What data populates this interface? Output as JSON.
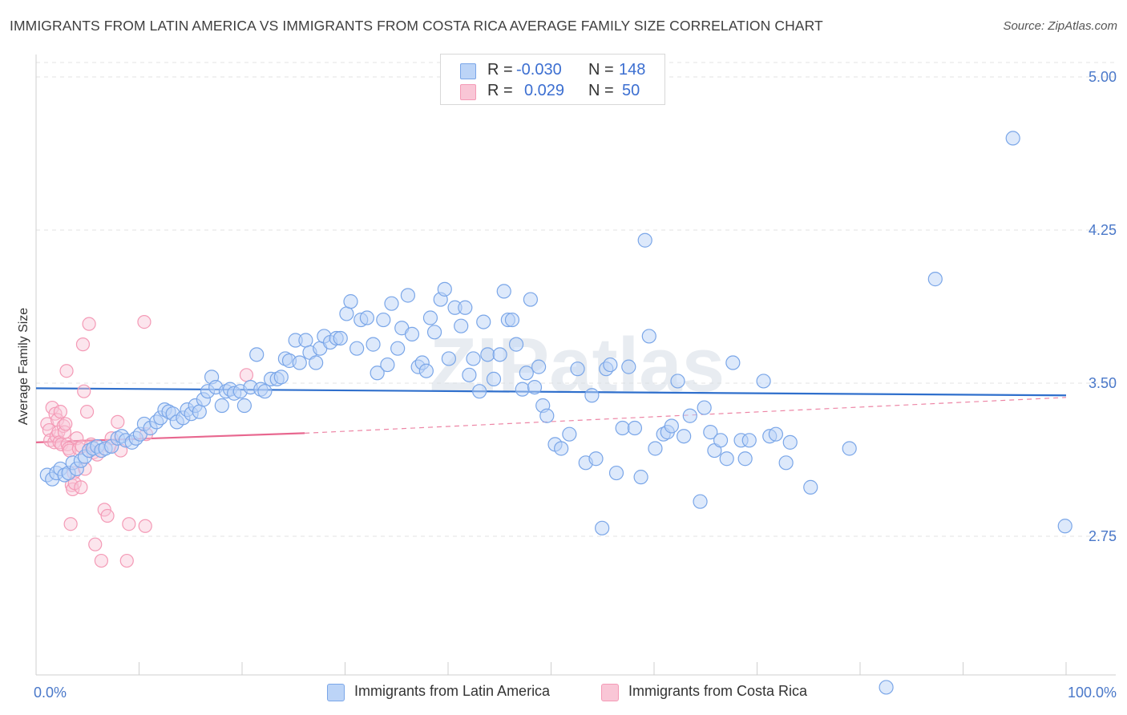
{
  "title": "IMMIGRANTS FROM LATIN AMERICA VS IMMIGRANTS FROM COSTA RICA AVERAGE FAMILY SIZE CORRELATION CHART",
  "source": "Source: ZipAtlas.com",
  "watermark": "ZIPatlas",
  "legend": {
    "r_label": "R =",
    "n_label": "N =",
    "rows": [
      {
        "r": "-0.030",
        "n": "148",
        "color": "#a9c8f5"
      },
      {
        "r": "0.029",
        "n": "50",
        "color": "#f7b3c8"
      }
    ]
  },
  "chart_data": {
    "type": "scatter",
    "title": "IMMIGRANTS FROM LATIN AMERICA VS IMMIGRANTS FROM COSTA RICA AVERAGE FAMILY SIZE CORRELATION CHART",
    "xlabel": "",
    "ylabel": "Average Family Size",
    "x_ticks": [
      "0.0%",
      "100.0%"
    ],
    "y_ticks": [
      "2.75",
      "3.50",
      "4.25",
      "5.00"
    ],
    "y_tick_values": [
      2.75,
      3.5,
      4.25,
      5.0
    ],
    "xlim": [
      0,
      100
    ],
    "ylim": [
      2.0,
      5.1
    ],
    "grid": true,
    "legend_position": "bottom",
    "series": [
      {
        "name": "Immigrants from Latin America",
        "color": "#7aa6e8",
        "line_color": "#2f6fcc",
        "trend": {
          "x": [
            0,
            100
          ],
          "y": [
            3.475,
            3.44
          ],
          "style": "solid"
        },
        "points": [
          [
            0.3,
            3.05
          ],
          [
            0.8,
            3.03
          ],
          [
            1.2,
            3.06
          ],
          [
            1.6,
            3.08
          ],
          [
            2.0,
            3.05
          ],
          [
            2.4,
            3.06
          ],
          [
            2.8,
            3.11
          ],
          [
            3.2,
            3.08
          ],
          [
            3.6,
            3.12
          ],
          [
            4.0,
            3.14
          ],
          [
            4.4,
            3.17
          ],
          [
            4.8,
            3.18
          ],
          [
            5.2,
            3.19
          ],
          [
            5.6,
            3.17
          ],
          [
            6.0,
            3.18
          ],
          [
            6.6,
            3.19
          ],
          [
            7.2,
            3.23
          ],
          [
            7.6,
            3.24
          ],
          [
            8.0,
            3.22
          ],
          [
            8.6,
            3.21
          ],
          [
            9.0,
            3.23
          ],
          [
            9.4,
            3.25
          ],
          [
            9.8,
            3.3
          ],
          [
            10.4,
            3.28
          ],
          [
            11.0,
            3.31
          ],
          [
            11.4,
            3.33
          ],
          [
            11.8,
            3.37
          ],
          [
            12.2,
            3.36
          ],
          [
            12.6,
            3.35
          ],
          [
            13.0,
            3.31
          ],
          [
            13.6,
            3.33
          ],
          [
            14.0,
            3.37
          ],
          [
            14.4,
            3.35
          ],
          [
            14.8,
            3.39
          ],
          [
            15.2,
            3.36
          ],
          [
            15.6,
            3.42
          ],
          [
            16.0,
            3.46
          ],
          [
            16.4,
            3.53
          ],
          [
            16.8,
            3.48
          ],
          [
            17.4,
            3.39
          ],
          [
            17.8,
            3.46
          ],
          [
            18.2,
            3.47
          ],
          [
            18.6,
            3.45
          ],
          [
            19.2,
            3.46
          ],
          [
            19.6,
            3.39
          ],
          [
            20.2,
            3.48
          ],
          [
            20.8,
            3.64
          ],
          [
            21.2,
            3.47
          ],
          [
            21.6,
            3.46
          ],
          [
            22.2,
            3.52
          ],
          [
            22.8,
            3.52
          ],
          [
            23.2,
            3.53
          ],
          [
            23.6,
            3.62
          ],
          [
            24.0,
            3.61
          ],
          [
            24.6,
            3.71
          ],
          [
            25.0,
            3.6
          ],
          [
            25.6,
            3.71
          ],
          [
            26.0,
            3.65
          ],
          [
            26.6,
            3.6
          ],
          [
            27.0,
            3.67
          ],
          [
            27.4,
            3.73
          ],
          [
            28.0,
            3.7
          ],
          [
            28.6,
            3.72
          ],
          [
            29.0,
            3.72
          ],
          [
            29.6,
            3.84
          ],
          [
            30.0,
            3.9
          ],
          [
            30.6,
            3.67
          ],
          [
            31.0,
            3.81
          ],
          [
            31.6,
            3.82
          ],
          [
            32.2,
            3.69
          ],
          [
            32.6,
            3.55
          ],
          [
            33.2,
            3.81
          ],
          [
            33.6,
            3.59
          ],
          [
            34.0,
            3.89
          ],
          [
            34.6,
            3.67
          ],
          [
            35.0,
            3.77
          ],
          [
            35.6,
            3.93
          ],
          [
            36.0,
            3.74
          ],
          [
            36.6,
            3.58
          ],
          [
            37.0,
            3.6
          ],
          [
            37.4,
            3.56
          ],
          [
            37.8,
            3.82
          ],
          [
            38.2,
            3.75
          ],
          [
            38.8,
            3.91
          ],
          [
            39.2,
            3.96
          ],
          [
            39.6,
            3.62
          ],
          [
            40.2,
            3.87
          ],
          [
            40.8,
            3.78
          ],
          [
            41.2,
            3.87
          ],
          [
            41.6,
            3.54
          ],
          [
            42.0,
            3.62
          ],
          [
            42.6,
            3.46
          ],
          [
            43.0,
            3.8
          ],
          [
            43.4,
            3.64
          ],
          [
            44.0,
            3.52
          ],
          [
            44.6,
            3.64
          ],
          [
            45.0,
            3.95
          ],
          [
            45.4,
            3.81
          ],
          [
            45.8,
            3.81
          ],
          [
            46.2,
            3.69
          ],
          [
            46.8,
            3.47
          ],
          [
            47.2,
            3.55
          ],
          [
            47.6,
            3.91
          ],
          [
            48.0,
            3.48
          ],
          [
            48.4,
            3.58
          ],
          [
            48.8,
            3.39
          ],
          [
            49.2,
            3.34
          ],
          [
            50.0,
            3.2
          ],
          [
            50.6,
            3.18
          ],
          [
            51.4,
            3.25
          ],
          [
            52.2,
            3.57
          ],
          [
            53.0,
            3.11
          ],
          [
            53.6,
            3.44
          ],
          [
            54.0,
            3.13
          ],
          [
            54.6,
            2.79
          ],
          [
            55.0,
            3.57
          ],
          [
            55.4,
            3.59
          ],
          [
            56.0,
            3.06
          ],
          [
            56.6,
            3.28
          ],
          [
            57.2,
            3.58
          ],
          [
            57.8,
            3.28
          ],
          [
            58.4,
            3.04
          ],
          [
            58.8,
            4.2
          ],
          [
            59.2,
            3.73
          ],
          [
            59.8,
            3.18
          ],
          [
            60.6,
            3.25
          ],
          [
            61.0,
            3.26
          ],
          [
            61.4,
            3.29
          ],
          [
            62.0,
            3.51
          ],
          [
            62.6,
            3.24
          ],
          [
            63.2,
            3.34
          ],
          [
            64.2,
            2.92
          ],
          [
            64.6,
            3.38
          ],
          [
            65.2,
            3.26
          ],
          [
            65.6,
            3.17
          ],
          [
            66.2,
            3.22
          ],
          [
            66.8,
            3.13
          ],
          [
            67.4,
            3.6
          ],
          [
            68.2,
            3.22
          ],
          [
            68.6,
            3.13
          ],
          [
            69.0,
            3.22
          ],
          [
            70.4,
            3.51
          ],
          [
            71.0,
            3.24
          ],
          [
            71.6,
            3.25
          ],
          [
            72.6,
            3.11
          ],
          [
            73.0,
            3.21
          ],
          [
            75.0,
            2.99
          ],
          [
            78.8,
            3.18
          ],
          [
            82.4,
            2.01
          ],
          [
            87.2,
            4.01
          ],
          [
            94.8,
            4.7
          ],
          [
            99.9,
            2.8
          ]
        ]
      },
      {
        "name": "Immigrants from Costa Rica",
        "color": "#f49ab6",
        "line_color": "#e8678f",
        "trend": {
          "x": [
            0,
            25.5,
            100
          ],
          "y": [
            3.21,
            3.255,
            3.43
          ],
          "style": "solid-then-dashed"
        },
        "points": [
          [
            0.3,
            3.3
          ],
          [
            0.5,
            3.27
          ],
          [
            0.6,
            3.22
          ],
          [
            0.8,
            3.38
          ],
          [
            1.0,
            3.21
          ],
          [
            1.1,
            3.35
          ],
          [
            1.2,
            3.24
          ],
          [
            1.3,
            3.32
          ],
          [
            1.4,
            3.26
          ],
          [
            1.5,
            3.21
          ],
          [
            1.6,
            3.36
          ],
          [
            1.7,
            3.2
          ],
          [
            1.9,
            3.29
          ],
          [
            2.0,
            3.26
          ],
          [
            2.1,
            3.3
          ],
          [
            2.2,
            3.56
          ],
          [
            2.3,
            3.2
          ],
          [
            2.4,
            3.18
          ],
          [
            2.5,
            3.17
          ],
          [
            2.6,
            2.81
          ],
          [
            2.7,
            3.0
          ],
          [
            2.8,
            2.98
          ],
          [
            2.9,
            3.06
          ],
          [
            3.0,
            3.01
          ],
          [
            3.2,
            3.23
          ],
          [
            3.4,
            3.18
          ],
          [
            3.6,
            2.99
          ],
          [
            3.7,
            3.19
          ],
          [
            3.8,
            3.69
          ],
          [
            3.9,
            3.46
          ],
          [
            4.0,
            3.08
          ],
          [
            4.2,
            3.36
          ],
          [
            4.4,
            3.79
          ],
          [
            4.6,
            3.2
          ],
          [
            4.8,
            3.16
          ],
          [
            5.0,
            2.71
          ],
          [
            5.2,
            3.15
          ],
          [
            5.6,
            2.63
          ],
          [
            5.9,
            2.88
          ],
          [
            6.2,
            2.85
          ],
          [
            6.4,
            3.19
          ],
          [
            6.6,
            3.23
          ],
          [
            7.2,
            3.31
          ],
          [
            7.5,
            3.17
          ],
          [
            8.1,
            2.63
          ],
          [
            8.3,
            2.81
          ],
          [
            9.8,
            3.8
          ],
          [
            9.9,
            2.8
          ],
          [
            10.0,
            3.25
          ],
          [
            19.8,
            3.54
          ]
        ]
      }
    ]
  },
  "bottom_legend": [
    "Immigrants from Latin America",
    "Immigrants from Costa Rica"
  ]
}
